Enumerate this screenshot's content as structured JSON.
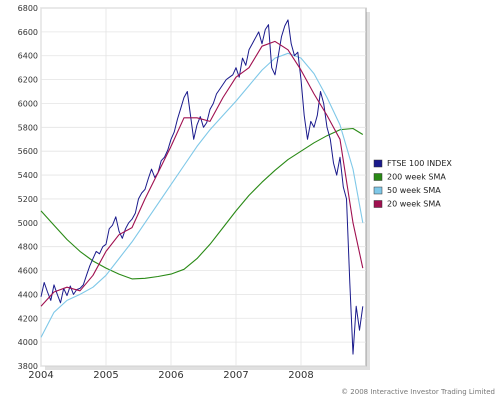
{
  "chart_data": {
    "type": "line",
    "title": "",
    "xlabel": "",
    "ylabel": "",
    "xlim": [
      2004.0,
      2009.0
    ],
    "ylim": [
      3800,
      6800
    ],
    "yticks": [
      3800,
      4000,
      4200,
      4400,
      4600,
      4800,
      5000,
      5200,
      5400,
      5600,
      5800,
      6000,
      6200,
      6400,
      6600,
      6800
    ],
    "xticks": [
      {
        "label": "2004",
        "value": 2004.0
      },
      {
        "label": "2005",
        "value": 2005.0
      },
      {
        "label": "2006",
        "value": 2006.0
      },
      {
        "label": "2007",
        "value": 2007.0
      },
      {
        "label": "2008",
        "value": 2008.0
      }
    ],
    "grid": true,
    "legend_position": "right",
    "copyright": "© 2008 Interactive Investor Trading Limited",
    "series": [
      {
        "name": "FTSE 100 INDEX",
        "color": "#1a1a8c",
        "x": [
          2004.0,
          2004.05,
          2004.1,
          2004.15,
          2004.2,
          2004.25,
          2004.3,
          2004.35,
          2004.4,
          2004.45,
          2004.5,
          2004.55,
          2004.6,
          2004.65,
          2004.7,
          2004.75,
          2004.8,
          2004.85,
          2004.9,
          2004.95,
          2005.0,
          2005.05,
          2005.1,
          2005.15,
          2005.2,
          2005.25,
          2005.3,
          2005.35,
          2005.4,
          2005.45,
          2005.5,
          2005.55,
          2005.6,
          2005.65,
          2005.7,
          2005.75,
          2005.8,
          2005.85,
          2005.9,
          2005.95,
          2006.0,
          2006.05,
          2006.1,
          2006.15,
          2006.2,
          2006.25,
          2006.3,
          2006.35,
          2006.4,
          2006.45,
          2006.5,
          2006.55,
          2006.6,
          2006.65,
          2006.7,
          2006.75,
          2006.8,
          2006.85,
          2006.9,
          2006.95,
          2007.0,
          2007.05,
          2007.1,
          2007.15,
          2007.2,
          2007.25,
          2007.3,
          2007.35,
          2007.4,
          2007.45,
          2007.5,
          2007.55,
          2007.6,
          2007.65,
          2007.7,
          2007.75,
          2007.8,
          2007.85,
          2007.9,
          2007.95,
          2008.0,
          2008.05,
          2008.1,
          2008.15,
          2008.2,
          2008.25,
          2008.3,
          2008.35,
          2008.4,
          2008.45,
          2008.5,
          2008.55,
          2008.6,
          2008.65,
          2008.7,
          2008.75,
          2008.8,
          2008.85,
          2008.9,
          2008.95
        ],
        "values": [
          4380,
          4500,
          4420,
          4350,
          4480,
          4400,
          4330,
          4450,
          4390,
          4470,
          4400,
          4440,
          4450,
          4480,
          4560,
          4640,
          4700,
          4760,
          4740,
          4800,
          4820,
          4950,
          4980,
          5050,
          4930,
          4870,
          4950,
          5000,
          5030,
          5080,
          5200,
          5250,
          5280,
          5370,
          5450,
          5380,
          5420,
          5520,
          5550,
          5610,
          5700,
          5760,
          5870,
          5960,
          6050,
          6100,
          5900,
          5700,
          5820,
          5890,
          5800,
          5840,
          5950,
          6000,
          6080,
          6120,
          6160,
          6200,
          6220,
          6240,
          6300,
          6220,
          6380,
          6320,
          6450,
          6500,
          6550,
          6600,
          6500,
          6620,
          6660,
          6300,
          6240,
          6400,
          6560,
          6650,
          6700,
          6500,
          6400,
          6430,
          6200,
          5900,
          5700,
          5850,
          5800,
          5900,
          6100,
          6000,
          5800,
          5700,
          5500,
          5400,
          5550,
          5300,
          5200,
          4500,
          3900,
          4300,
          4100,
          4300
        ]
      },
      {
        "name": "200 week SMA",
        "color": "#2a8a16",
        "x": [
          2004.0,
          2004.2,
          2004.4,
          2004.6,
          2004.8,
          2005.0,
          2005.2,
          2005.4,
          2005.6,
          2005.8,
          2006.0,
          2006.2,
          2006.4,
          2006.6,
          2006.8,
          2007.0,
          2007.2,
          2007.4,
          2007.6,
          2007.8,
          2008.0,
          2008.2,
          2008.4,
          2008.6,
          2008.8,
          2008.95
        ],
        "values": [
          5100,
          4980,
          4860,
          4760,
          4680,
          4620,
          4570,
          4530,
          4535,
          4550,
          4570,
          4610,
          4700,
          4820,
          4960,
          5100,
          5230,
          5340,
          5440,
          5530,
          5600,
          5670,
          5730,
          5780,
          5790,
          5740
        ]
      },
      {
        "name": "50 week SMA",
        "color": "#7fc8e8",
        "x": [
          2004.0,
          2004.2,
          2004.4,
          2004.6,
          2004.8,
          2005.0,
          2005.2,
          2005.4,
          2005.6,
          2005.8,
          2006.0,
          2006.2,
          2006.4,
          2006.6,
          2006.8,
          2007.0,
          2007.2,
          2007.4,
          2007.6,
          2007.8,
          2008.0,
          2008.2,
          2008.4,
          2008.6,
          2008.8,
          2008.95
        ],
        "values": [
          4040,
          4250,
          4350,
          4400,
          4460,
          4560,
          4700,
          4840,
          5000,
          5160,
          5320,
          5480,
          5640,
          5780,
          5900,
          6020,
          6150,
          6280,
          6380,
          6420,
          6380,
          6250,
          6050,
          5820,
          5450,
          5000
        ]
      },
      {
        "name": "20 week SMA",
        "color": "#a01050",
        "x": [
          2004.0,
          2004.2,
          2004.4,
          2004.6,
          2004.8,
          2005.0,
          2005.2,
          2005.4,
          2005.6,
          2005.8,
          2006.0,
          2006.2,
          2006.4,
          2006.6,
          2006.8,
          2007.0,
          2007.2,
          2007.4,
          2007.6,
          2007.8,
          2008.0,
          2008.2,
          2008.4,
          2008.6,
          2008.8,
          2008.95
        ],
        "values": [
          4300,
          4420,
          4460,
          4430,
          4560,
          4760,
          4900,
          4960,
          5200,
          5420,
          5640,
          5880,
          5880,
          5850,
          6050,
          6220,
          6300,
          6480,
          6520,
          6450,
          6280,
          6080,
          5900,
          5700,
          5000,
          4620
        ]
      }
    ]
  }
}
